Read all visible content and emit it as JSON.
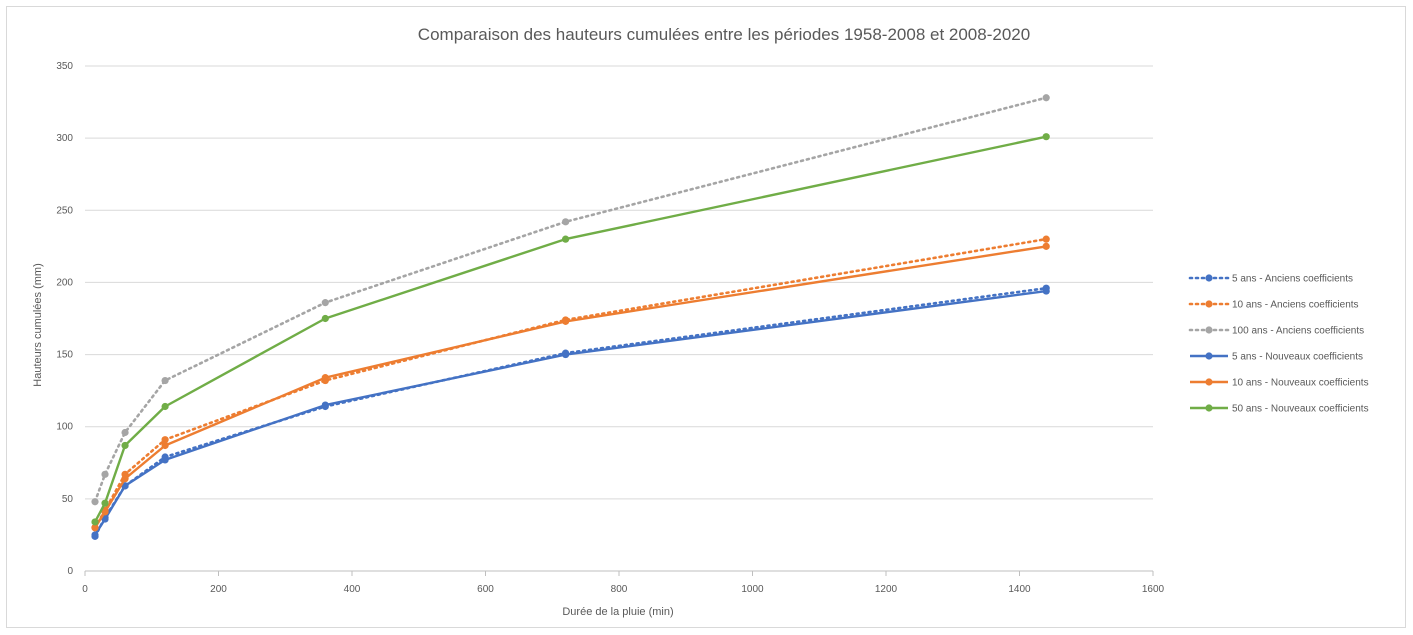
{
  "chart_data": {
    "type": "line",
    "title": "Comparaison des hauteurs cumulées entre les périodes 1958-2008 et 2008-2020",
    "xlabel": "Durée de la pluie (min)",
    "ylabel": "Hauteurs cumulées (mm)",
    "xlim": [
      0,
      1600
    ],
    "ylim": [
      0,
      350
    ],
    "xticks": [
      0,
      200,
      400,
      600,
      800,
      1000,
      1200,
      1400,
      1600
    ],
    "yticks": [
      0,
      50,
      100,
      150,
      200,
      250,
      300,
      350
    ],
    "grid": "horizontal",
    "legend_position": "right",
    "x": [
      15,
      30,
      60,
      120,
      360,
      720,
      1440
    ],
    "series": [
      {
        "name": "5 ans - Anciens coefficients",
        "color": "#4472c4",
        "style": "dotted",
        "values": [
          24,
          37,
          59,
          79,
          114,
          151,
          196
        ]
      },
      {
        "name": "10 ans - Anciens coefficients",
        "color": "#ed7d31",
        "style": "dotted",
        "values": [
          30,
          42,
          67,
          91,
          132,
          174,
          230
        ]
      },
      {
        "name": "100 ans - Anciens coefficients",
        "color": "#a5a5a5",
        "style": "dotted",
        "values": [
          48,
          67,
          96,
          132,
          186,
          242,
          328
        ]
      },
      {
        "name": "5 ans - Nouveaux coefficients",
        "color": "#4472c4",
        "style": "solid",
        "values": [
          25,
          36,
          59,
          77,
          115,
          150,
          194
        ]
      },
      {
        "name": "10 ans - Nouveaux coefficients",
        "color": "#ed7d31",
        "style": "solid",
        "values": [
          30,
          41,
          64,
          87,
          134,
          173,
          225
        ]
      },
      {
        "name": "50 ans - Nouveaux coefficients",
        "color": "#70ad47",
        "style": "solid",
        "values": [
          34,
          47,
          87,
          114,
          175,
          230,
          301
        ]
      }
    ]
  }
}
